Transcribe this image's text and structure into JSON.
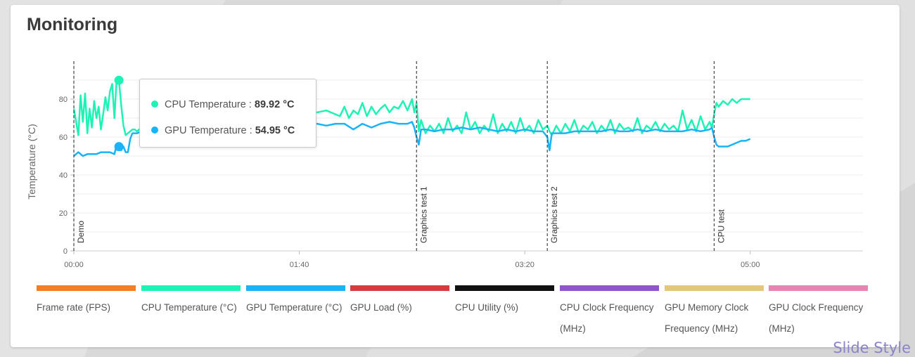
{
  "card": {
    "title": "Monitoring"
  },
  "tooltip": {
    "rows": [
      {
        "label": "CPU Temperature :",
        "value": "89.92 °C",
        "color": "#1ef2b4"
      },
      {
        "label": "GPU Temperature :",
        "value": "54.95 °C",
        "color": "#1ab3f8"
      }
    ]
  },
  "legend": {
    "items": [
      {
        "label": "Frame rate (FPS)",
        "color": "#f57e25"
      },
      {
        "label": "CPU Temperature (°C)",
        "color": "#1ef2b4"
      },
      {
        "label": "GPU Temperature (°C)",
        "color": "#1ab3f8"
      },
      {
        "label": "GPU Load (%)",
        "color": "#d83a3f"
      },
      {
        "label": "CPU Utility (%)",
        "color": "#111111"
      },
      {
        "label": "CPU Clock Frequency (MHz)",
        "color": "#9055cc"
      },
      {
        "label": "GPU Memory Clock Frequency (MHz)",
        "color": "#e3c87b"
      },
      {
        "label": "GPU Clock Frequency (MHz)",
        "color": "#e685b1"
      }
    ]
  },
  "watermark": "Slide Style",
  "chart_data": {
    "type": "line",
    "ylabel": "Temperature (°C)",
    "xlabel": "",
    "ylim": [
      0,
      100
    ],
    "xlim": [
      0,
      350
    ],
    "x_ticks": [
      0,
      100,
      200,
      300
    ],
    "x_tick_labels": [
      "00:00",
      "01:40",
      "03:20",
      "05:00"
    ],
    "y_ticks": [
      0,
      20,
      40,
      60,
      80
    ],
    "grid": true,
    "markers": [
      {
        "x": 0,
        "label": "Demo"
      },
      {
        "x": 152,
        "label": "Graphics test 1"
      },
      {
        "x": 210,
        "label": "Graphics test 2"
      },
      {
        "x": 284,
        "label": "CPU test"
      }
    ],
    "hover": {
      "x": 20,
      "values": [
        89.92,
        54.95
      ]
    },
    "series": [
      {
        "name": "CPU Temperature (°C)",
        "color": "#1ef2b4",
        "x": [
          0,
          2,
          3,
          4,
          5,
          6,
          7,
          8,
          9,
          10,
          11,
          12,
          13,
          14,
          15,
          16,
          17,
          18,
          19,
          20,
          21,
          22,
          23,
          24,
          25,
          26,
          27,
          28,
          30,
          34,
          40,
          46,
          52,
          58,
          64,
          70,
          76,
          82,
          88,
          94,
          100,
          104,
          108,
          112,
          116,
          118,
          120,
          122,
          124,
          126,
          128,
          130,
          132,
          134,
          136,
          138,
          140,
          142,
          144,
          146,
          148,
          150,
          151,
          152,
          153,
          154,
          156,
          158,
          160,
          162,
          164,
          166,
          168,
          170,
          172,
          174,
          176,
          178,
          180,
          182,
          184,
          186,
          188,
          190,
          192,
          194,
          196,
          198,
          200,
          202,
          204,
          206,
          208,
          210,
          211,
          212,
          214,
          216,
          218,
          220,
          222,
          224,
          226,
          228,
          230,
          232,
          234,
          236,
          238,
          240,
          242,
          244,
          246,
          248,
          250,
          252,
          254,
          256,
          258,
          260,
          262,
          264,
          266,
          268,
          270,
          272,
          274,
          276,
          278,
          280,
          282,
          283,
          284,
          285,
          286,
          288,
          290,
          292,
          294,
          296,
          298,
          300
        ],
        "y": [
          75,
          61,
          82,
          68,
          83,
          62,
          75,
          65,
          79,
          70,
          76,
          64,
          72,
          81,
          74,
          84,
          88,
          70,
          91,
          89.92,
          77,
          66,
          61,
          62,
          63,
          64,
          64,
          63,
          65,
          66,
          67,
          66,
          68,
          67,
          69,
          68,
          70,
          69,
          71,
          70,
          71,
          72,
          73,
          74,
          72,
          71,
          76,
          70,
          74,
          72,
          78,
          71,
          76,
          72,
          75,
          77,
          73,
          76,
          75,
          79,
          74,
          80,
          73,
          78,
          63,
          69,
          62,
          66,
          63,
          67,
          62,
          70,
          63,
          66,
          62,
          73,
          64,
          68,
          62,
          66,
          63,
          72,
          62,
          67,
          63,
          68,
          62,
          70,
          63,
          66,
          62,
          69,
          64,
          66,
          63,
          61,
          66,
          62,
          67,
          63,
          69,
          62,
          66,
          64,
          68,
          62,
          66,
          63,
          69,
          62,
          67,
          64,
          65,
          63,
          70,
          62,
          66,
          64,
          68,
          63,
          67,
          64,
          66,
          63,
          74,
          64,
          69,
          63,
          71,
          64,
          68,
          65,
          72,
          78,
          76,
          79,
          77,
          80,
          78,
          80,
          80,
          80
        ]
      },
      {
        "name": "GPU Temperature (°C)",
        "color": "#1ab3f8",
        "x": [
          0,
          2,
          4,
          6,
          8,
          10,
          12,
          14,
          16,
          18,
          19,
          20,
          21,
          22,
          23,
          24,
          25,
          26,
          28,
          30,
          34,
          40,
          46,
          52,
          58,
          64,
          70,
          76,
          82,
          88,
          94,
          100,
          104,
          108,
          112,
          116,
          120,
          124,
          128,
          132,
          136,
          140,
          144,
          148,
          150,
          151,
          152,
          153,
          154,
          156,
          160,
          164,
          168,
          172,
          176,
          180,
          184,
          188,
          192,
          196,
          200,
          204,
          208,
          210,
          211,
          212,
          214,
          218,
          222,
          226,
          230,
          234,
          238,
          242,
          246,
          250,
          254,
          258,
          262,
          266,
          270,
          274,
          278,
          282,
          283,
          284,
          285,
          286,
          290,
          294,
          296,
          298,
          300
        ],
        "y": [
          50,
          52,
          50,
          51,
          51,
          51,
          52,
          52,
          52,
          51,
          56,
          54.95,
          53,
          55,
          52,
          52,
          59,
          62,
          62,
          63,
          63,
          64,
          64,
          65,
          65,
          65,
          66,
          66,
          66,
          66,
          67,
          66,
          67,
          67,
          66,
          67,
          67,
          64,
          67,
          65,
          67,
          68,
          67,
          67,
          68,
          65,
          60,
          56,
          64,
          64,
          63,
          64,
          64,
          65,
          64,
          65,
          64,
          63,
          64,
          63,
          64,
          63,
          63,
          60,
          53,
          62,
          62,
          62,
          63,
          63,
          63,
          63,
          64,
          63,
          63,
          64,
          63,
          64,
          63,
          63,
          63,
          64,
          63,
          64,
          65,
          60,
          56,
          55,
          55,
          57,
          58,
          58,
          59
        ]
      }
    ]
  }
}
